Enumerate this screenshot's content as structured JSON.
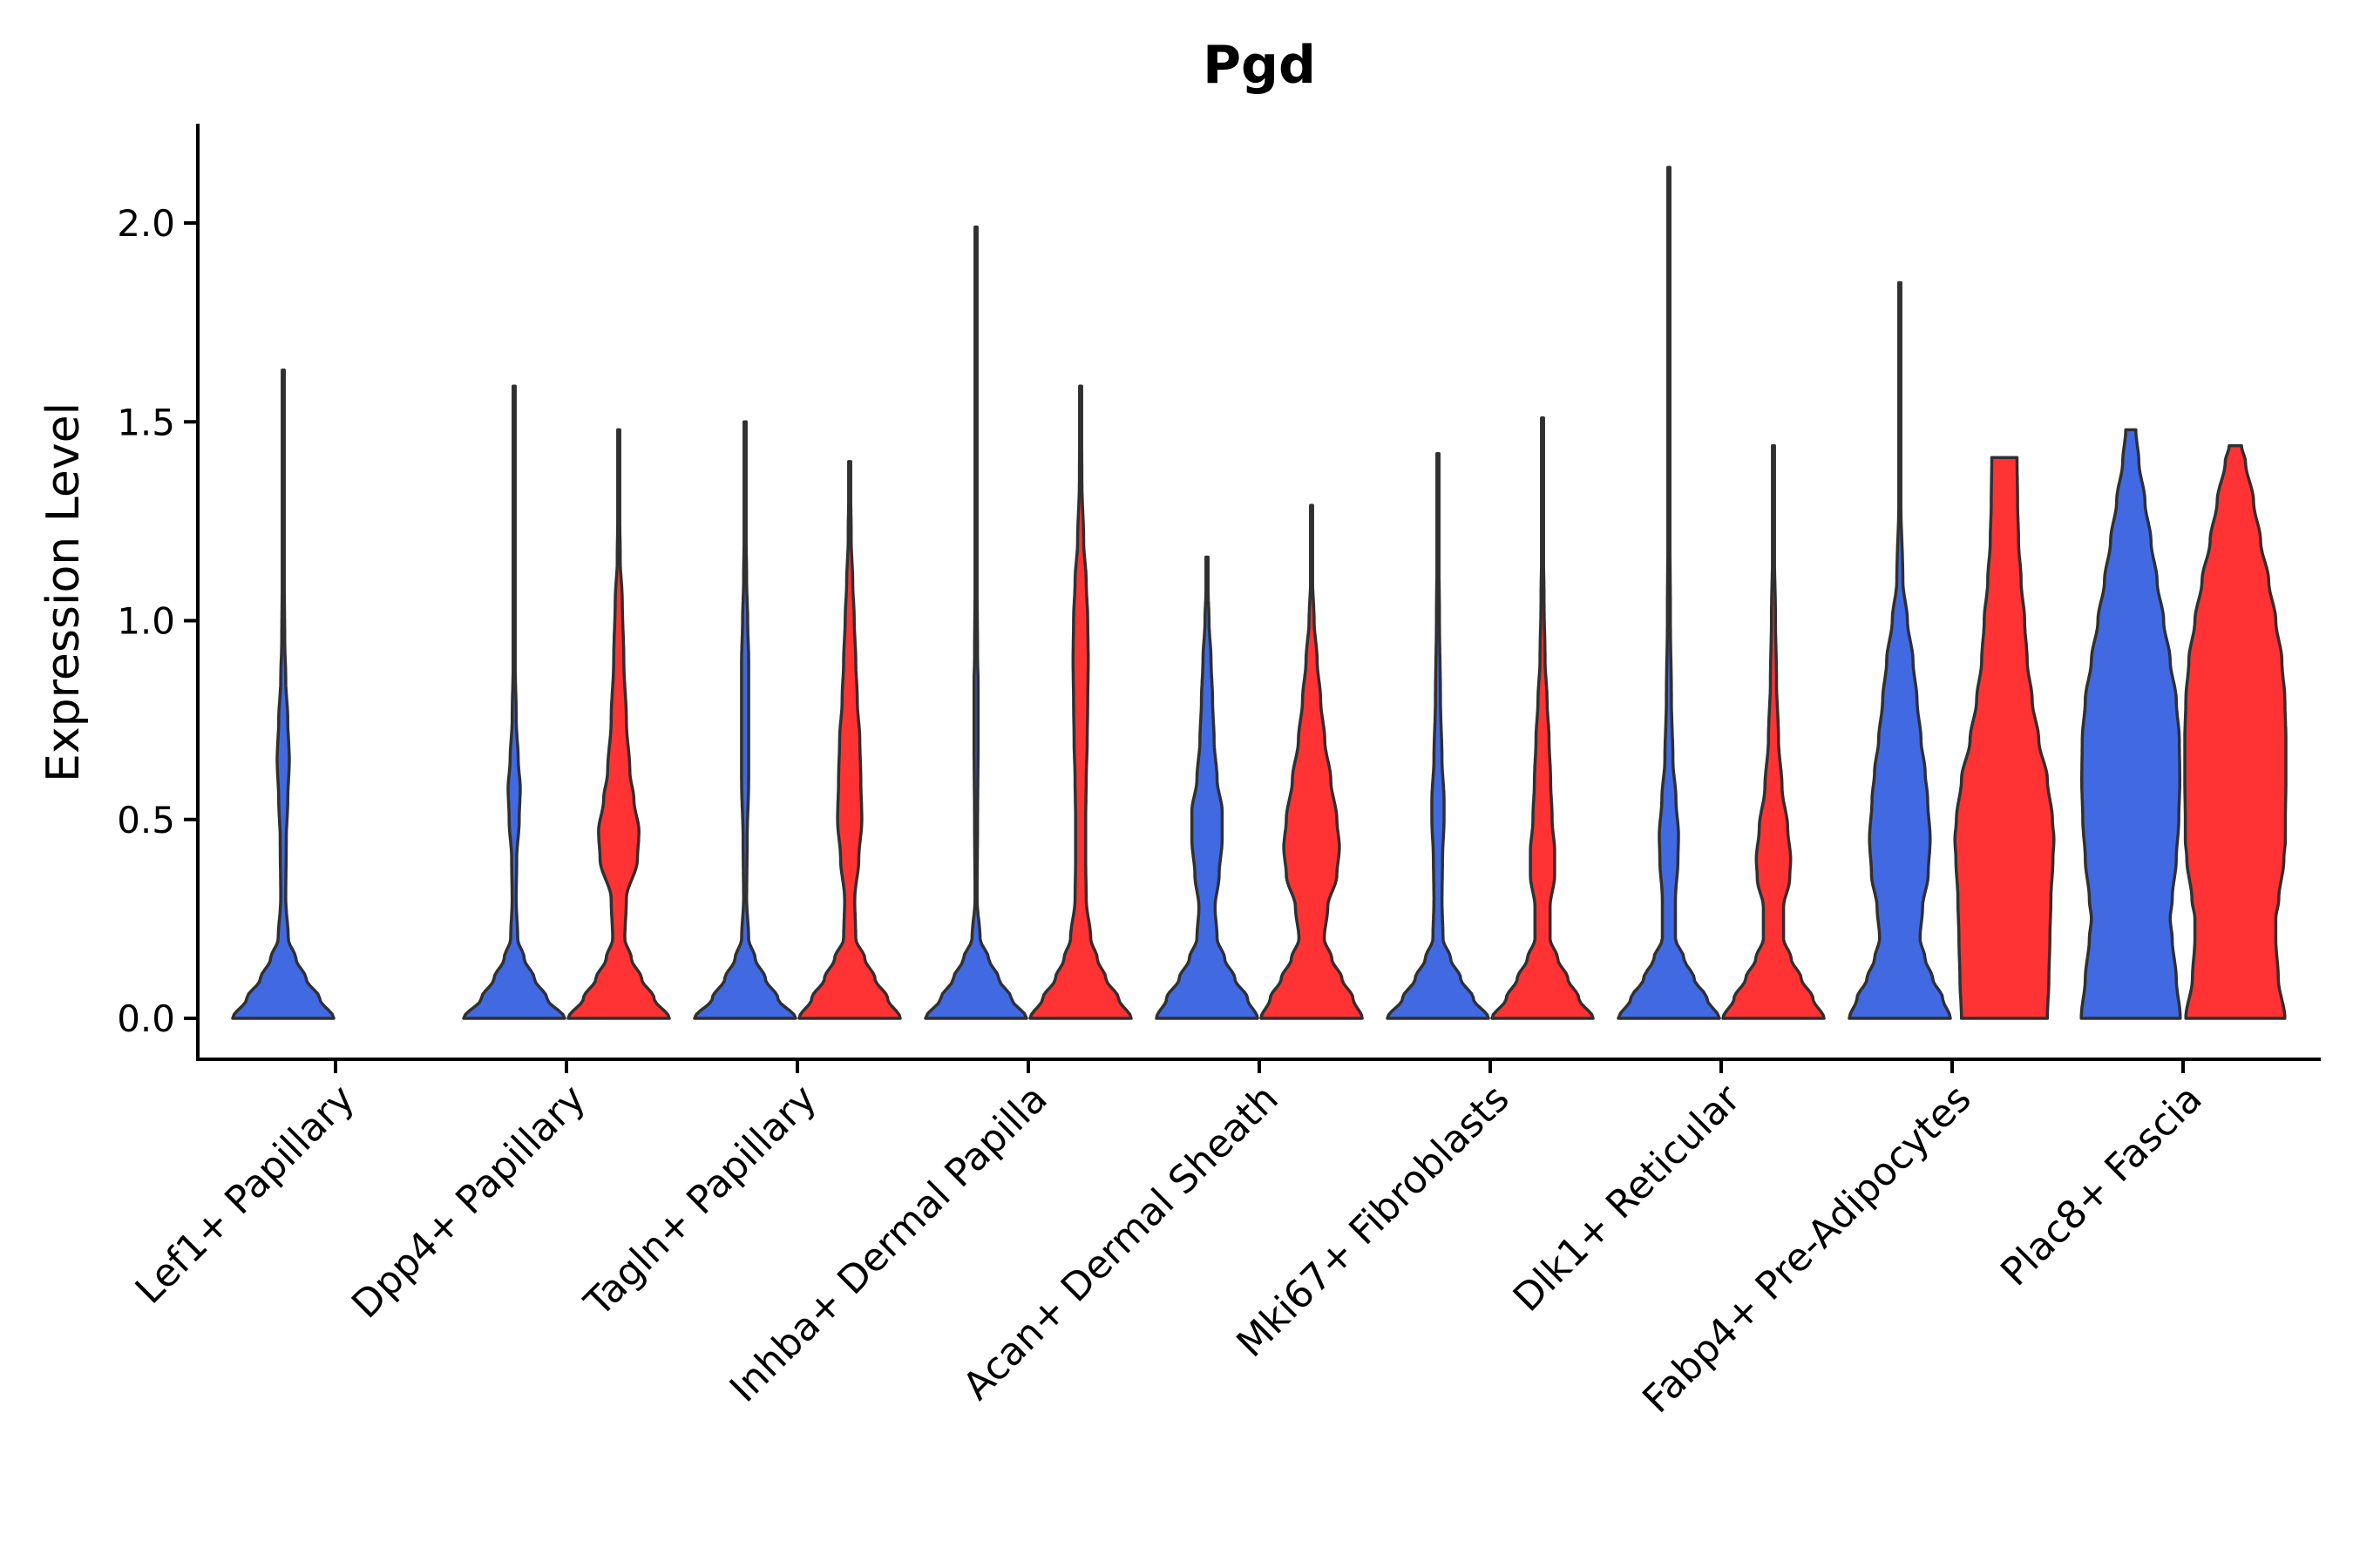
{
  "chart_data": {
    "type": "violin",
    "title": "Pgd",
    "xlabel": "",
    "ylabel": "Expression Level",
    "ylim": [
      -0.11,
      2.25
    ],
    "yticks": [
      "0.0",
      "0.5",
      "1.0",
      "1.5",
      "2.0"
    ],
    "grid": false,
    "legend": "none",
    "colors": [
      "#4169E1",
      "#FF3333"
    ],
    "categories": [
      "Lef1+ Papillary",
      "Dpp4+ Papillary",
      "Tagln+ Papillary",
      "Inhba+ Dermal Papilla",
      "Acan+ Dermal Sheath",
      "Mki67+ Fibroblasts",
      "Dlk1+ Reticular",
      "Fabp4+ Pre-Adipocytes",
      "Plac8+ Fascia"
    ],
    "violins": [
      {
        "category": 0,
        "color": 0,
        "max": 1.63,
        "profile": [
          [
            0,
            1
          ],
          [
            0.05,
            0.72
          ],
          [
            0.1,
            0.45
          ],
          [
            0.15,
            0.25
          ],
          [
            0.2,
            0.1
          ],
          [
            0.3,
            0.05
          ],
          [
            0.45,
            0.06
          ],
          [
            0.55,
            0.09
          ],
          [
            0.65,
            0.12
          ],
          [
            0.75,
            0.09
          ],
          [
            0.85,
            0.05
          ],
          [
            0.95,
            0.03
          ],
          [
            1.1,
            0.02
          ],
          [
            1.3,
            0.015
          ],
          [
            1.5,
            0.01
          ],
          [
            1.63,
            0.01
          ]
        ]
      },
      {
        "category": 1,
        "color": 0,
        "max": 1.59,
        "profile": [
          [
            0,
            1
          ],
          [
            0.05,
            0.65
          ],
          [
            0.1,
            0.4
          ],
          [
            0.15,
            0.2
          ],
          [
            0.2,
            0.07
          ],
          [
            0.3,
            0.04
          ],
          [
            0.4,
            0.05
          ],
          [
            0.5,
            0.1
          ],
          [
            0.58,
            0.12
          ],
          [
            0.65,
            0.08
          ],
          [
            0.75,
            0.04
          ],
          [
            0.9,
            0.02
          ],
          [
            1.1,
            0.015
          ],
          [
            1.3,
            0.01
          ],
          [
            1.59,
            0.01
          ]
        ]
      },
      {
        "category": 1,
        "color": 1,
        "max": 1.48,
        "profile": [
          [
            0,
            1
          ],
          [
            0.05,
            0.7
          ],
          [
            0.1,
            0.45
          ],
          [
            0.15,
            0.25
          ],
          [
            0.2,
            0.12
          ],
          [
            0.3,
            0.15
          ],
          [
            0.4,
            0.37
          ],
          [
            0.47,
            0.4
          ],
          [
            0.55,
            0.3
          ],
          [
            0.62,
            0.22
          ],
          [
            0.75,
            0.15
          ],
          [
            0.9,
            0.1
          ],
          [
            1.05,
            0.07
          ],
          [
            1.15,
            0.03
          ],
          [
            1.3,
            0.015
          ],
          [
            1.48,
            0.01
          ]
        ]
      },
      {
        "category": 2,
        "color": 0,
        "max": 1.5,
        "profile": [
          [
            0,
            1
          ],
          [
            0.05,
            0.65
          ],
          [
            0.1,
            0.4
          ],
          [
            0.15,
            0.2
          ],
          [
            0.2,
            0.07
          ],
          [
            0.3,
            0.03
          ],
          [
            0.45,
            0.04
          ],
          [
            0.6,
            0.07
          ],
          [
            0.75,
            0.07
          ],
          [
            0.9,
            0.07
          ],
          [
            1.0,
            0.05
          ],
          [
            1.1,
            0.03
          ],
          [
            1.25,
            0.015
          ],
          [
            1.5,
            0.01
          ]
        ]
      },
      {
        "category": 2,
        "color": 1,
        "max": 1.4,
        "profile": [
          [
            0,
            1
          ],
          [
            0.05,
            0.75
          ],
          [
            0.1,
            0.5
          ],
          [
            0.15,
            0.3
          ],
          [
            0.2,
            0.12
          ],
          [
            0.3,
            0.1
          ],
          [
            0.4,
            0.18
          ],
          [
            0.5,
            0.24
          ],
          [
            0.6,
            0.22
          ],
          [
            0.7,
            0.2
          ],
          [
            0.8,
            0.15
          ],
          [
            0.9,
            0.12
          ],
          [
            1.0,
            0.09
          ],
          [
            1.1,
            0.06
          ],
          [
            1.2,
            0.03
          ],
          [
            1.4,
            0.01
          ]
        ]
      },
      {
        "category": 3,
        "color": 0,
        "max": 1.99,
        "profile": [
          [
            0,
            1
          ],
          [
            0.05,
            0.7
          ],
          [
            0.1,
            0.45
          ],
          [
            0.15,
            0.25
          ],
          [
            0.2,
            0.08
          ],
          [
            0.3,
            0.02
          ],
          [
            0.5,
            0.03
          ],
          [
            0.7,
            0.04
          ],
          [
            0.85,
            0.04
          ],
          [
            0.9,
            0.03
          ],
          [
            1.1,
            0.02
          ],
          [
            1.4,
            0.015
          ],
          [
            1.7,
            0.01
          ],
          [
            1.99,
            0.01
          ]
        ]
      },
      {
        "category": 3,
        "color": 1,
        "max": 1.59,
        "profile": [
          [
            0,
            1
          ],
          [
            0.05,
            0.75
          ],
          [
            0.1,
            0.5
          ],
          [
            0.15,
            0.33
          ],
          [
            0.2,
            0.2
          ],
          [
            0.3,
            0.11
          ],
          [
            0.4,
            0.1
          ],
          [
            0.5,
            0.1
          ],
          [
            0.6,
            0.11
          ],
          [
            0.7,
            0.13
          ],
          [
            0.8,
            0.14
          ],
          [
            0.9,
            0.15
          ],
          [
            1.0,
            0.14
          ],
          [
            1.1,
            0.11
          ],
          [
            1.2,
            0.06
          ],
          [
            1.35,
            0.025
          ],
          [
            1.59,
            0.01
          ]
        ]
      },
      {
        "category": 4,
        "color": 0,
        "max": 1.16,
        "profile": [
          [
            0,
            1
          ],
          [
            0.05,
            0.8
          ],
          [
            0.1,
            0.55
          ],
          [
            0.15,
            0.35
          ],
          [
            0.2,
            0.2
          ],
          [
            0.28,
            0.16
          ],
          [
            0.36,
            0.24
          ],
          [
            0.45,
            0.3
          ],
          [
            0.52,
            0.3
          ],
          [
            0.6,
            0.2
          ],
          [
            0.7,
            0.14
          ],
          [
            0.8,
            0.11
          ],
          [
            0.9,
            0.08
          ],
          [
            1.0,
            0.04
          ],
          [
            1.08,
            0.02
          ],
          [
            1.16,
            0.01
          ]
        ]
      },
      {
        "category": 4,
        "color": 1,
        "max": 1.29,
        "profile": [
          [
            0,
            1
          ],
          [
            0.05,
            0.82
          ],
          [
            0.1,
            0.6
          ],
          [
            0.15,
            0.4
          ],
          [
            0.2,
            0.25
          ],
          [
            0.28,
            0.32
          ],
          [
            0.36,
            0.5
          ],
          [
            0.43,
            0.55
          ],
          [
            0.5,
            0.5
          ],
          [
            0.6,
            0.38
          ],
          [
            0.7,
            0.26
          ],
          [
            0.8,
            0.18
          ],
          [
            0.9,
            0.11
          ],
          [
            1.0,
            0.05
          ],
          [
            1.1,
            0.02
          ],
          [
            1.29,
            0.01
          ]
        ]
      },
      {
        "category": 5,
        "color": 0,
        "max": 1.42,
        "profile": [
          [
            0,
            1
          ],
          [
            0.05,
            0.7
          ],
          [
            0.1,
            0.45
          ],
          [
            0.15,
            0.25
          ],
          [
            0.2,
            0.1
          ],
          [
            0.3,
            0.08
          ],
          [
            0.4,
            0.09
          ],
          [
            0.5,
            0.12
          ],
          [
            0.55,
            0.12
          ],
          [
            0.65,
            0.08
          ],
          [
            0.8,
            0.05
          ],
          [
            1.0,
            0.03
          ],
          [
            1.2,
            0.015
          ],
          [
            1.42,
            0.01
          ]
        ]
      },
      {
        "category": 5,
        "color": 1,
        "max": 1.51,
        "profile": [
          [
            0,
            1
          ],
          [
            0.05,
            0.72
          ],
          [
            0.1,
            0.5
          ],
          [
            0.15,
            0.3
          ],
          [
            0.2,
            0.15
          ],
          [
            0.28,
            0.15
          ],
          [
            0.36,
            0.24
          ],
          [
            0.42,
            0.24
          ],
          [
            0.5,
            0.19
          ],
          [
            0.6,
            0.16
          ],
          [
            0.7,
            0.13
          ],
          [
            0.8,
            0.09
          ],
          [
            0.9,
            0.05
          ],
          [
            1.05,
            0.03
          ],
          [
            1.2,
            0.015
          ],
          [
            1.51,
            0.01
          ]
        ]
      },
      {
        "category": 6,
        "color": 0,
        "max": 2.14,
        "profile": [
          [
            0,
            1
          ],
          [
            0.05,
            0.75
          ],
          [
            0.1,
            0.5
          ],
          [
            0.15,
            0.3
          ],
          [
            0.2,
            0.13
          ],
          [
            0.3,
            0.13
          ],
          [
            0.4,
            0.18
          ],
          [
            0.46,
            0.19
          ],
          [
            0.55,
            0.14
          ],
          [
            0.65,
            0.08
          ],
          [
            0.8,
            0.05
          ],
          [
            1.0,
            0.03
          ],
          [
            1.3,
            0.015
          ],
          [
            1.6,
            0.01
          ],
          [
            2.14,
            0.01
          ]
        ]
      },
      {
        "category": 6,
        "color": 1,
        "max": 1.44,
        "profile": [
          [
            0,
            1
          ],
          [
            0.05,
            0.78
          ],
          [
            0.1,
            0.55
          ],
          [
            0.15,
            0.35
          ],
          [
            0.2,
            0.2
          ],
          [
            0.28,
            0.2
          ],
          [
            0.35,
            0.32
          ],
          [
            0.4,
            0.34
          ],
          [
            0.48,
            0.28
          ],
          [
            0.58,
            0.17
          ],
          [
            0.7,
            0.1
          ],
          [
            0.85,
            0.06
          ],
          [
            1.0,
            0.04
          ],
          [
            1.2,
            0.015
          ],
          [
            1.44,
            0.01
          ]
        ]
      },
      {
        "category": 7,
        "color": 0,
        "max": 1.85,
        "profile": [
          [
            0,
            1
          ],
          [
            0.05,
            0.85
          ],
          [
            0.1,
            0.65
          ],
          [
            0.15,
            0.5
          ],
          [
            0.2,
            0.4
          ],
          [
            0.28,
            0.45
          ],
          [
            0.36,
            0.56
          ],
          [
            0.45,
            0.6
          ],
          [
            0.55,
            0.55
          ],
          [
            0.62,
            0.5
          ],
          [
            0.7,
            0.42
          ],
          [
            0.8,
            0.34
          ],
          [
            0.9,
            0.26
          ],
          [
            1.0,
            0.15
          ],
          [
            1.1,
            0.06
          ],
          [
            1.3,
            0.02
          ],
          [
            1.85,
            0.01
          ]
        ]
      },
      {
        "category": 7,
        "color": 1,
        "max": 1.41,
        "profile": [
          [
            0,
            0.85
          ],
          [
            0.1,
            0.88
          ],
          [
            0.2,
            0.9
          ],
          [
            0.3,
            0.92
          ],
          [
            0.4,
            0.96
          ],
          [
            0.45,
            0.98
          ],
          [
            0.5,
            0.95
          ],
          [
            0.6,
            0.85
          ],
          [
            0.7,
            0.68
          ],
          [
            0.8,
            0.55
          ],
          [
            0.9,
            0.45
          ],
          [
            1.0,
            0.4
          ],
          [
            1.1,
            0.33
          ],
          [
            1.2,
            0.28
          ],
          [
            1.3,
            0.26
          ],
          [
            1.41,
            0.25
          ]
        ]
      },
      {
        "category": 8,
        "color": 0,
        "max": 1.48,
        "profile": [
          [
            0,
            0.98
          ],
          [
            0.1,
            0.9
          ],
          [
            0.2,
            0.82
          ],
          [
            0.25,
            0.78
          ],
          [
            0.3,
            0.82
          ],
          [
            0.4,
            0.9
          ],
          [
            0.5,
            0.95
          ],
          [
            0.6,
            0.97
          ],
          [
            0.7,
            0.96
          ],
          [
            0.8,
            0.9
          ],
          [
            0.9,
            0.78
          ],
          [
            1.0,
            0.65
          ],
          [
            1.1,
            0.52
          ],
          [
            1.2,
            0.4
          ],
          [
            1.3,
            0.28
          ],
          [
            1.4,
            0.16
          ],
          [
            1.48,
            0.1
          ]
        ]
      },
      {
        "category": 8,
        "color": 1,
        "max": 1.44,
        "profile": [
          [
            0,
            0.98
          ],
          [
            0.1,
            0.85
          ],
          [
            0.2,
            0.8
          ],
          [
            0.25,
            0.8
          ],
          [
            0.3,
            0.86
          ],
          [
            0.4,
            0.96
          ],
          [
            0.45,
            0.99
          ],
          [
            0.5,
            0.99
          ],
          [
            0.6,
            1.0
          ],
          [
            0.7,
            1.0
          ],
          [
            0.8,
            0.98
          ],
          [
            0.9,
            0.92
          ],
          [
            1.0,
            0.8
          ],
          [
            1.1,
            0.66
          ],
          [
            1.2,
            0.5
          ],
          [
            1.3,
            0.36
          ],
          [
            1.4,
            0.2
          ],
          [
            1.44,
            0.12
          ]
        ]
      }
    ]
  }
}
